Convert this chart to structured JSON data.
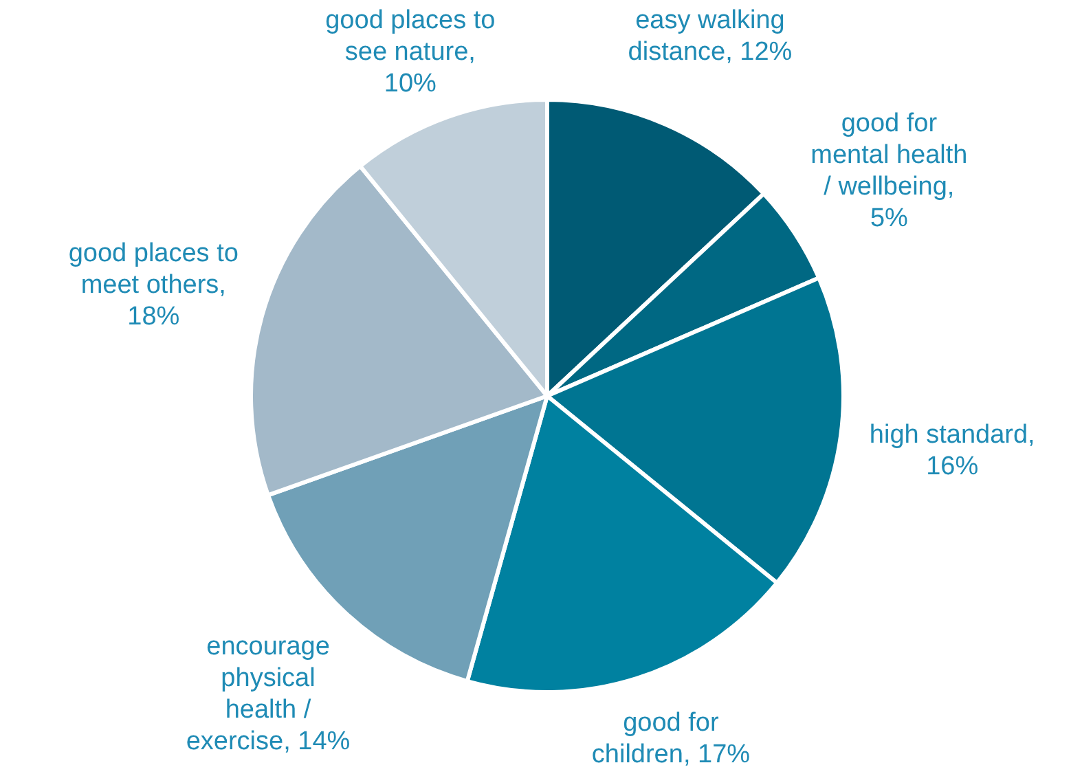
{
  "chart_data": {
    "type": "pie",
    "categories": [
      "easy walking distance, 12%",
      "good for mental health / wellbeing, 5%",
      "high standard, 16%",
      "good for children, 17%",
      "encourage physical health / exercise, 14%",
      "good places to meet others, 18%",
      "good places to see nature, 10%"
    ],
    "values": [
      12,
      5,
      16,
      17,
      14,
      18,
      10
    ],
    "colors": [
      "#005a74",
      "#006883",
      "#007592",
      "#0081a0",
      "#70a0b7",
      "#a3b9c9",
      "#c0cfda"
    ],
    "legend": false
  }
}
